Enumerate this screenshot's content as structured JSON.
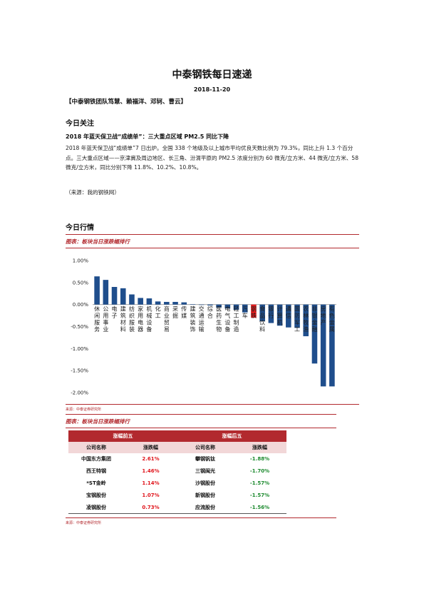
{
  "header": {
    "title": "中泰钢铁每日速递",
    "date": "2018-11-20",
    "team": "【中泰钢铁团队笃慧、赖福洋、邓轲、曹云】"
  },
  "focus": {
    "section_title": "今日关注",
    "headline": "2018 年蓝天保卫战“成绩单”：三大重点区域 PM2.5 同比下降",
    "body": "2018 年蓝天保卫战“成绩单”7 日出炉。全国 338 个地级及以上城市平均优良天数比例为 79.3%，同比上升 1.3 个百分点。三大重点区域——京津冀及周边地区、长三角、汾渭平原的 PM2.5 浓度分别为 60 微克/立方米、44 微克/立方米、58 微克/立方米，同比分别下降 11.8%、10.2%、10.8%。",
    "source": "（来源：我的钢铁网）"
  },
  "market": {
    "section_title": "今日行情",
    "figure1_caption": "图表：板块当日涨跌幅排行",
    "figure1_source": "来源：中泰证券研究所",
    "figure2_caption": "图表：板块当日涨跌幅排行",
    "figure2_source": "来源：中泰证券研究所"
  },
  "chart_data": {
    "type": "bar",
    "categories": [
      "休闲服务",
      "公用事业",
      "电子",
      "建筑材料",
      "纺织服装",
      "家用电器",
      "机械设备",
      "化工",
      "商业贸易",
      "采掘",
      "传媒",
      "建筑装饰",
      "交通运输",
      "综合",
      "医药生物",
      "电气设备",
      "轻工制造",
      "汽车",
      "钢铁",
      "食品饮料",
      "银行",
      "计算机",
      "通信",
      "国防军工",
      "农林牧渔",
      "非银金融",
      "房地产",
      "有色金属"
    ],
    "values": [
      0.64,
      0.56,
      0.4,
      0.37,
      0.23,
      0.15,
      0.14,
      0.07,
      0.06,
      0.06,
      0.05,
      0.0,
      -0.01,
      -0.02,
      -0.07,
      -0.09,
      -0.12,
      -0.18,
      -0.3,
      -0.38,
      -0.42,
      -0.48,
      -0.52,
      -0.53,
      -0.72,
      -1.34,
      -1.86,
      -1.86
    ],
    "highlight": "钢铁",
    "colors": {
      "bar": "#1f4e8c",
      "highlight": "#e41a1c"
    },
    "yticks": [
      "1.00%",
      "0.50%",
      "0.00%",
      "-0.50%",
      "-1.00%",
      "-1.50%",
      "-2.00%"
    ],
    "ylim": [
      -2.0,
      1.0
    ],
    "grid": false
  },
  "table": {
    "group_titles": [
      "涨幅前五",
      "涨幅后五"
    ],
    "col_headers": [
      "公司名称",
      "涨跌幅",
      "公司名称",
      "涨跌幅"
    ],
    "rows": [
      [
        "中国东方集团",
        "2.61%",
        "攀钢钒钛",
        "-1.88%"
      ],
      [
        "西王特钢",
        "1.46%",
        "三钢闽光",
        "-1.70%"
      ],
      [
        "*ST金岭",
        "1.14%",
        "沙钢股份",
        "-1.57%"
      ],
      [
        "宝钢股份",
        "1.07%",
        "新钢股份",
        "-1.57%"
      ],
      [
        "凌钢股份",
        "0.73%",
        "应流股份",
        "-1.56%"
      ]
    ]
  }
}
